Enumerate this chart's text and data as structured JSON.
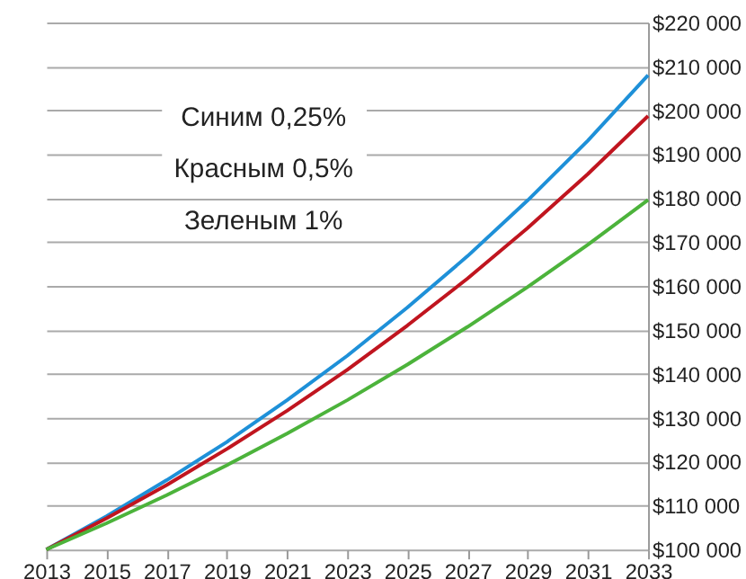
{
  "chart_data": {
    "type": "line",
    "x": [
      2013,
      2015,
      2017,
      2019,
      2021,
      2023,
      2025,
      2027,
      2029,
      2031,
      2033
    ],
    "series": [
      {
        "color": "#1e90d8",
        "values": [
          100000,
          107600,
          115800,
          124500,
          134000,
          144100,
          155100,
          166800,
          179500,
          193100,
          208000
        ]
      },
      {
        "color": "#c0151f",
        "values": [
          100000,
          107100,
          114700,
          122900,
          131600,
          140900,
          151000,
          161700,
          173200,
          185500,
          198700
        ]
      },
      {
        "color": "#4cb33b",
        "values": [
          100000,
          106000,
          112400,
          119200,
          126400,
          134000,
          142100,
          150700,
          159800,
          169400,
          179600
        ]
      }
    ],
    "annotations": [
      "Синим 0,25%",
      "Красным 0,5%",
      "Зеленым 1%"
    ],
    "xlim": [
      2013,
      2033
    ],
    "xticks": [
      2013,
      2015,
      2017,
      2019,
      2021,
      2023,
      2025,
      2027,
      2029,
      2031,
      2033
    ],
    "ylim": [
      100000,
      220000
    ],
    "yticks": [
      {
        "value": 100000,
        "label": "$100 000"
      },
      {
        "value": 110000,
        "label": "$110 000"
      },
      {
        "value": 120000,
        "label": "$120 000"
      },
      {
        "value": 130000,
        "label": "$130 000"
      },
      {
        "value": 140000,
        "label": "$140 000"
      },
      {
        "value": 150000,
        "label": "$150 000"
      },
      {
        "value": 160000,
        "label": "$160 000"
      },
      {
        "value": 170000,
        "label": "$170 000"
      },
      {
        "value": 180000,
        "label": "$180 000"
      },
      {
        "value": 190000,
        "label": "$190 000"
      },
      {
        "value": 200000,
        "label": "$200 000"
      },
      {
        "value": 210000,
        "label": "$210 000"
      },
      {
        "value": 220000,
        "label": "$220 000"
      }
    ],
    "grid": "y",
    "line_style": "solid",
    "marker": "none"
  }
}
